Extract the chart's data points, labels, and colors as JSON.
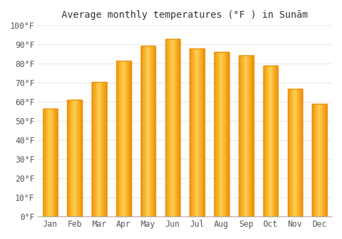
{
  "title": "Average monthly temperatures (°F ) in Sunām",
  "months": [
    "Jan",
    "Feb",
    "Mar",
    "Apr",
    "May",
    "Jun",
    "Jul",
    "Aug",
    "Sep",
    "Oct",
    "Nov",
    "Dec"
  ],
  "values": [
    56.5,
    61.0,
    70.5,
    81.5,
    89.5,
    93.0,
    88.0,
    86.0,
    84.5,
    79.0,
    67.0,
    59.0
  ],
  "bar_color_edge": "#E8900A",
  "bar_color_center": "#FFD050",
  "bar_color_side": "#F5A020",
  "background_color": "#ffffff",
  "grid_color": "#e8e8e8",
  "ylim": [
    0,
    100
  ],
  "ytick_step": 10,
  "title_fontsize": 10,
  "tick_fontsize": 8.5,
  "bar_width": 0.6
}
